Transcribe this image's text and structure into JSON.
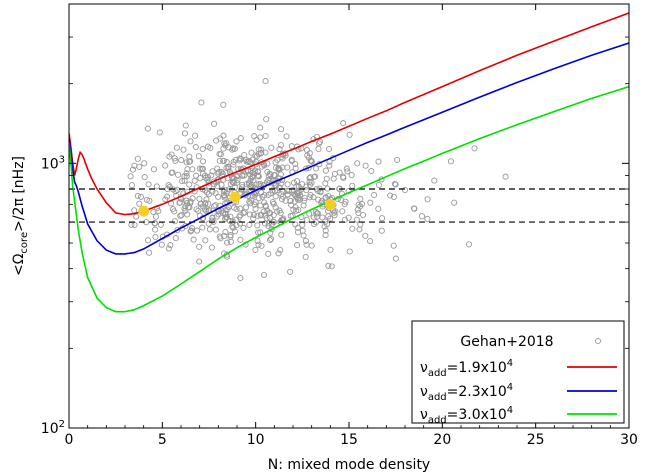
{
  "chart_data": {
    "type": "scatter",
    "xlabel": "N: mixed mode density",
    "ylabel": "<Ω_core>/2π [nHz]",
    "ylabel_parts": {
      "pre": "<Ω",
      "sub": "core",
      "post": ">/2π [nHz]"
    },
    "xlim": [
      0,
      30
    ],
    "ylim": [
      100,
      4000
    ],
    "yscale": "log",
    "xticks": [
      0,
      5,
      10,
      15,
      20,
      25,
      30
    ],
    "yticks": [
      {
        "value": 100,
        "base": "10",
        "exp": "2"
      },
      {
        "value": 1000,
        "base": "10",
        "exp": "3"
      }
    ],
    "grid": false,
    "legend_position": "bottom-right",
    "hlines": [
      {
        "y": 800,
        "style": "dashed"
      },
      {
        "y": 600,
        "style": "dashed"
      }
    ],
    "scatter": {
      "name": "Gehan+2018",
      "color": "#999999",
      "count": 700,
      "x_center": 9.5,
      "x_spread": 3.4,
      "y_center": 780,
      "y_log_spread": 0.11,
      "x_min": 3.3,
      "x_max": 24.6,
      "y_min": 180,
      "y_max": 2300
    },
    "series": [
      {
        "name_parts": {
          "pre": "ν",
          "sub": "add",
          "mid": "=1.9x10",
          "sup": "4"
        },
        "color": "#e00000",
        "x": [
          0,
          0.1,
          0.2,
          0.3,
          0.4,
          0.5,
          0.6,
          0.7,
          0.8,
          1.0,
          1.2,
          1.5,
          2.0,
          2.5,
          3.0,
          3.5,
          4.0,
          5,
          6,
          7,
          8,
          9,
          10,
          11,
          12,
          13,
          14,
          15,
          16,
          17,
          18,
          19,
          20,
          22,
          24,
          26,
          28,
          30
        ],
        "y": [
          1300,
          1150,
          1000,
          900,
          960,
          1040,
          1100,
          1080,
          1040,
          950,
          880,
          800,
          710,
          650,
          640,
          645,
          660,
          700,
          750,
          810,
          870,
          930,
          990,
          1060,
          1130,
          1210,
          1290,
          1380,
          1480,
          1580,
          1700,
          1820,
          1950,
          2240,
          2560,
          2900,
          3280,
          3700
        ]
      },
      {
        "name_parts": {
          "pre": "ν",
          "sub": "add",
          "mid": "=2.3x10",
          "sup": "4"
        },
        "color": "#0000d0",
        "x": [
          0,
          0.1,
          0.2,
          0.3,
          0.4,
          0.5,
          0.7,
          1.0,
          1.5,
          2.0,
          2.5,
          3.0,
          3.5,
          4.0,
          5,
          6,
          7,
          8,
          9,
          10,
          11,
          12,
          13,
          14,
          15,
          16,
          17,
          18,
          19,
          20,
          22,
          24,
          26,
          28,
          30
        ],
        "y": [
          1250,
          1100,
          950,
          850,
          820,
          780,
          690,
          590,
          510,
          470,
          455,
          455,
          460,
          475,
          520,
          570,
          620,
          675,
          730,
          790,
          850,
          910,
          975,
          1045,
          1120,
          1200,
          1280,
          1370,
          1460,
          1560,
          1780,
          2020,
          2280,
          2560,
          2850
        ]
      },
      {
        "name_parts": {
          "pre": "ν",
          "sub": "add",
          "mid": "=3.0x10",
          "sup": "4"
        },
        "color": "#00e000",
        "x": [
          0,
          0.1,
          0.2,
          0.3,
          0.5,
          0.7,
          1.0,
          1.5,
          2.0,
          2.5,
          3.0,
          3.5,
          4.0,
          5,
          6,
          7,
          8,
          9,
          10,
          11,
          12,
          13,
          14,
          15,
          16,
          17,
          18,
          19,
          20,
          22,
          24,
          26,
          28,
          30
        ],
        "y": [
          1200,
          1000,
          820,
          720,
          560,
          460,
          370,
          310,
          285,
          275,
          275,
          280,
          290,
          315,
          350,
          390,
          435,
          480,
          525,
          570,
          620,
          670,
          720,
          775,
          830,
          890,
          955,
          1020,
          1090,
          1240,
          1400,
          1570,
          1760,
          1950
        ]
      }
    ],
    "highlight_points": {
      "color": "#f5d020",
      "points": [
        {
          "x": 4.0,
          "y": 660
        },
        {
          "x": 8.9,
          "y": 745
        },
        {
          "x": 14.0,
          "y": 700
        }
      ]
    }
  }
}
